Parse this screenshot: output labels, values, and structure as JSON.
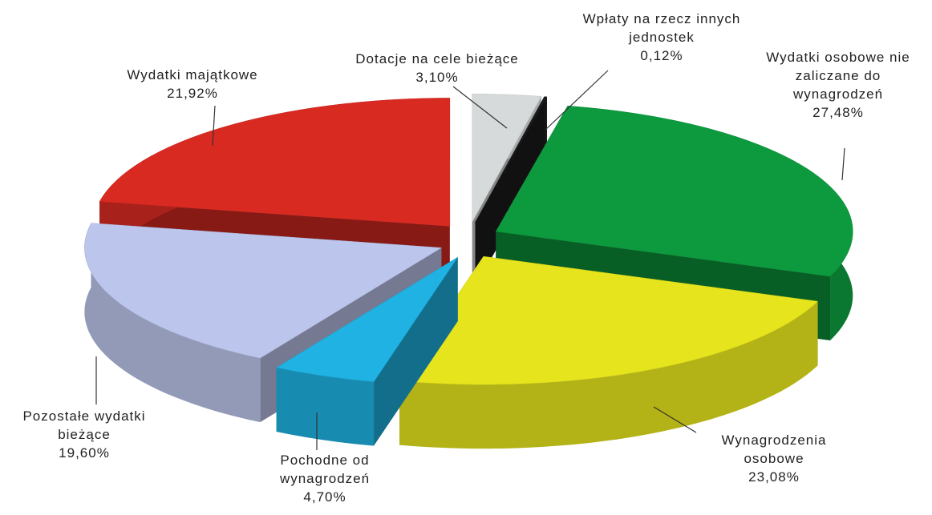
{
  "chart_data": {
    "type": "pie",
    "categories": [
      "Dotacje na cele bieżące",
      "Wpłaty na rzecz innych jednostek",
      "Wydatki osobowe nie zaliczane do wynagrodzeń",
      "Wynagrodzenia osobowe",
      "Pochodne od wynagrodzeń",
      "Pozostałe wydatki bieżące",
      "Wydatki majątkowe"
    ],
    "values": [
      3.1,
      0.12,
      27.48,
      23.08,
      4.7,
      19.6,
      21.92
    ],
    "value_labels": [
      "3,10%",
      "0,12%",
      "27,48%",
      "23,08%",
      "4,70%",
      "19,60%",
      "21,92%"
    ],
    "colors": [
      "#d6dada",
      "#1c1c1c",
      "#0d9a3e",
      "#e6e41c",
      "#1fb2e2",
      "#bcc5ec",
      "#d92a22"
    ]
  }
}
